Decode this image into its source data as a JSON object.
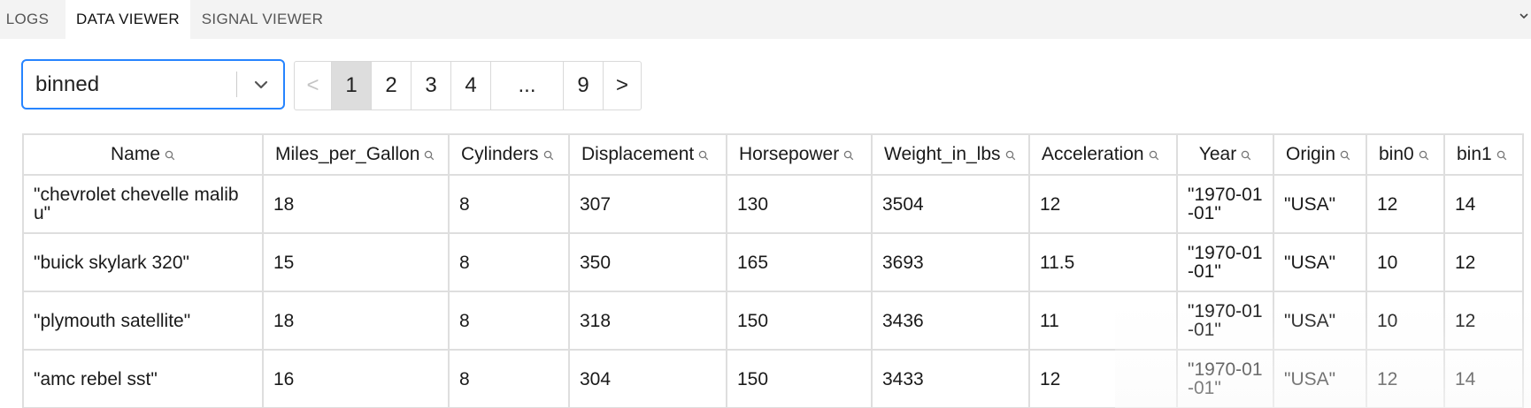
{
  "tabs": [
    {
      "label": "LOGS"
    },
    {
      "label": "DATA VIEWER"
    },
    {
      "label": "SIGNAL VIEWER"
    }
  ],
  "dataset_select": {
    "value": "binned"
  },
  "pagination": {
    "prev": "<",
    "pages": [
      "1",
      "2",
      "3",
      "4"
    ],
    "ellipsis": "...",
    "last": "9",
    "next": ">",
    "current": "1"
  },
  "table": {
    "columns": [
      "Name",
      "Miles_per_Gallon",
      "Cylinders",
      "Displacement",
      "Horsepower",
      "Weight_in_lbs",
      "Acceleration",
      "Year",
      "Origin",
      "bin0",
      "bin1"
    ],
    "rows": [
      [
        "\"chevrolet chevelle malibu\"",
        "18",
        "8",
        "307",
        "130",
        "3504",
        "12",
        "\"1970-01-01\"",
        "\"USA\"",
        "12",
        "14"
      ],
      [
        "\"buick skylark 320\"",
        "15",
        "8",
        "350",
        "165",
        "3693",
        "11.5",
        "\"1970-01-01\"",
        "\"USA\"",
        "10",
        "12"
      ],
      [
        "\"plymouth satellite\"",
        "18",
        "8",
        "318",
        "150",
        "3436",
        "11",
        "\"1970-01-01\"",
        "\"USA\"",
        "10",
        "12"
      ],
      [
        "\"amc rebel sst\"",
        "16",
        "8",
        "304",
        "150",
        "3433",
        "12",
        "\"1970-01-01\"",
        "\"USA\"",
        "12",
        "14"
      ]
    ]
  },
  "icons": {
    "column_search": "search-icon",
    "select_dropdown": "chevron-down-icon",
    "tabbar_overflow": "chevron-down-icon"
  },
  "colors": {
    "select_focus_border": "#2684ff",
    "current_page_bg": "#dddddd",
    "tabbar_bg": "#f3f3f3"
  }
}
